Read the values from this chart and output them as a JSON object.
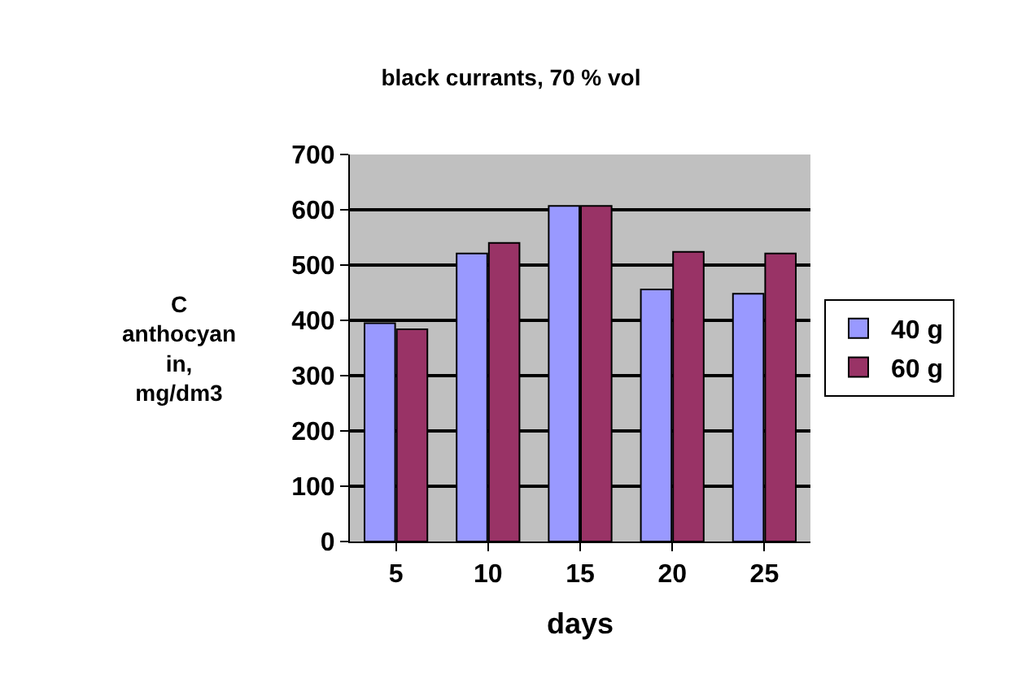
{
  "chart_data": {
    "type": "bar",
    "title": "black currants, 70 % vol",
    "xlabel": "days",
    "ylabel": "C\nanthocyan\nin,\nmg/dm3",
    "categories": [
      "5",
      "10",
      "15",
      "20",
      "25"
    ],
    "series": [
      {
        "name": "40 g",
        "color": "#9999ff",
        "values": [
          395,
          521,
          607,
          456,
          448
        ]
      },
      {
        "name": "60 g",
        "color": "#993366",
        "values": [
          384,
          540,
          607,
          524,
          521
        ]
      }
    ],
    "ylim": [
      0,
      700
    ],
    "yticks": [
      0,
      100,
      200,
      300,
      400,
      500,
      600,
      700
    ],
    "grid": "y",
    "legend": "right"
  }
}
